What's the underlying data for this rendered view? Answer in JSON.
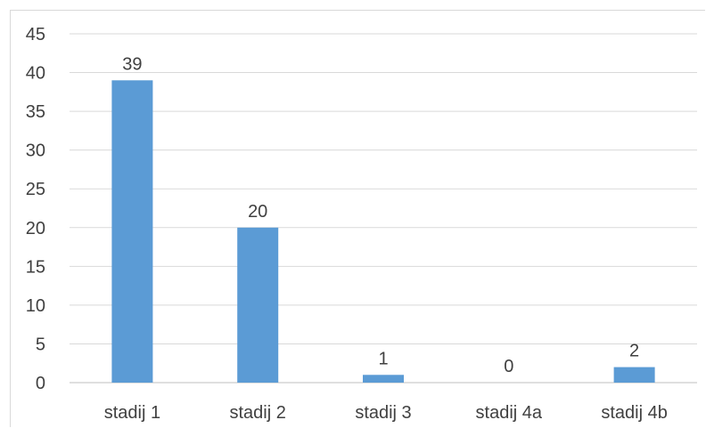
{
  "chart_data": {
    "type": "bar",
    "categories": [
      "stadij 1",
      "stadij 2",
      "stadij 3",
      "stadij 4a",
      "stadij 4b"
    ],
    "values": [
      39,
      20,
      1,
      0,
      2
    ],
    "data_labels": [
      "39",
      "20",
      "1",
      "0",
      "2"
    ],
    "title": "",
    "xlabel": "",
    "ylabel": "",
    "ylim": [
      0,
      45
    ],
    "yticks": [
      0,
      5,
      10,
      15,
      20,
      25,
      30,
      35,
      40,
      45
    ],
    "ytick_labels": [
      "0",
      "5",
      "10",
      "15",
      "20",
      "25",
      "30",
      "35",
      "40",
      "45"
    ],
    "grid": "horizontal",
    "legend": "none",
    "colors": {
      "bar": "#5b9bd5",
      "grid": "#d9d9d9",
      "axis": "#bfbfbf",
      "text": "#404040"
    }
  }
}
